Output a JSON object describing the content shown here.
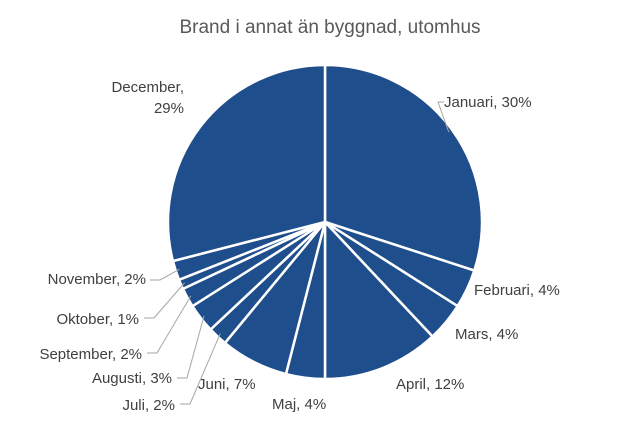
{
  "chart_data": {
    "type": "pie",
    "title": "Brand i annat än byggnad, utomhus",
    "categories": [
      "Januari",
      "Februari",
      "Mars",
      "April",
      "Maj",
      "Juni",
      "Juli",
      "Augusti",
      "September",
      "Oktober",
      "November",
      "December"
    ],
    "values": [
      30,
      4,
      4,
      12,
      4,
      7,
      2,
      3,
      2,
      1,
      2,
      29
    ],
    "unit": "%",
    "data_labels": [
      [
        "Januari, 30%"
      ],
      [
        "Februari, 4%"
      ],
      [
        "Mars, 4%"
      ],
      [
        "April, 12%"
      ],
      [
        "Maj, 4%"
      ],
      [
        "Juni, 7%"
      ],
      [
        "Juli, 2%"
      ],
      [
        "Augusti, 3%"
      ],
      [
        "September, 2%"
      ],
      [
        "Oktober, 1%"
      ],
      [
        "November, 2%"
      ],
      [
        "December,",
        "29%"
      ]
    ],
    "legend": "none",
    "slice_color": "#1f4e8c",
    "border_color": "#ffffff"
  }
}
